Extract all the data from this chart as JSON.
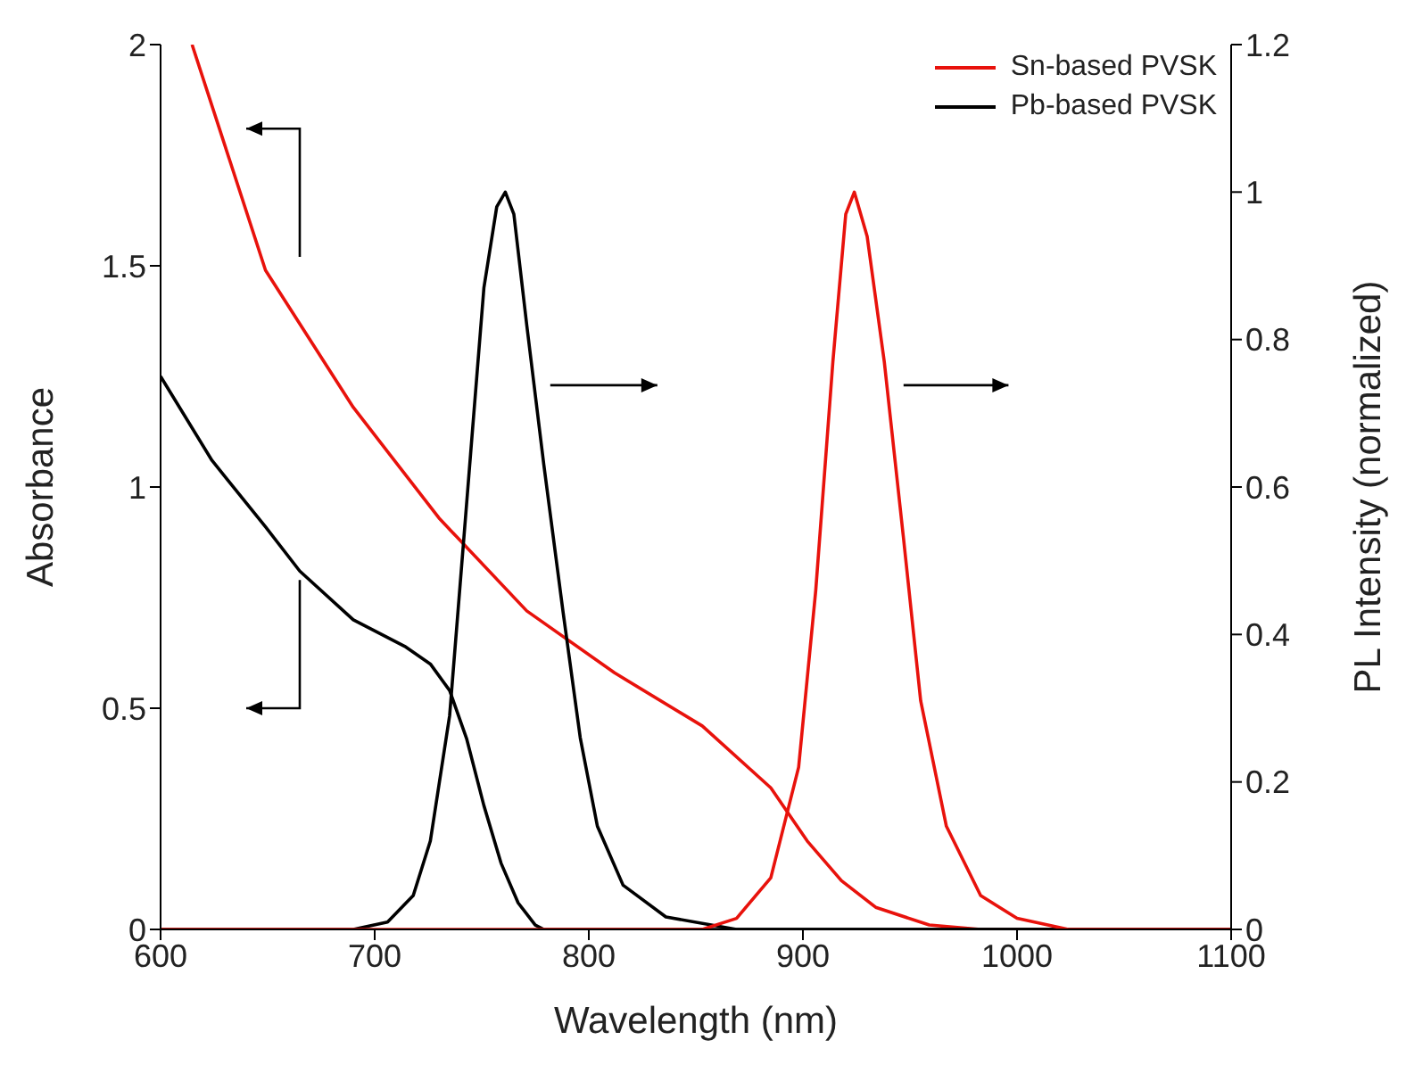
{
  "chart_data": {
    "type": "line",
    "xlabel": "Wavelength (nm)",
    "ylabel": "Absorbance",
    "y2label": "PL Intensity (normalized)",
    "xlim": [
      600,
      1100
    ],
    "xticks": [
      600,
      700,
      800,
      900,
      1000,
      1100
    ],
    "ylim": [
      0,
      2
    ],
    "yticks": [
      0,
      0.5,
      1,
      1.5,
      2
    ],
    "y2lim": [
      0,
      1.2
    ],
    "y2ticks": [
      0,
      0.2,
      0.4,
      0.6,
      0.8,
      1,
      1.2
    ],
    "legend": "top right",
    "series": [
      {
        "name": "Sn-based PVSK",
        "color": "#e8120c",
        "x": [
          614.7,
          649,
          690,
          730,
          771,
          812,
          853,
          885,
          902,
          918,
          934,
          959,
          983,
          1100
        ],
        "values": [
          2.0,
          1.49,
          1.18,
          0.93,
          0.72,
          0.58,
          0.46,
          0.32,
          0.2,
          0.11,
          0.05,
          0.01,
          0,
          0
        ]
      },
      {
        "name": "Pb-based PVSK",
        "color": "#000000",
        "x": [
          600,
          624,
          649,
          665,
          690,
          714,
          726,
          735,
          743,
          751,
          759,
          767,
          775,
          779,
          1100
        ],
        "values": [
          1.25,
          1.06,
          0.91,
          0.81,
          0.7,
          0.64,
          0.6,
          0.54,
          0.43,
          0.28,
          0.15,
          0.06,
          0.01,
          0,
          0
        ]
      },
      {
        "color": "#000000",
        "axis": "y2",
        "x": [
          600,
          690,
          706,
          718,
          726,
          735,
          743,
          751,
          757,
          761,
          765,
          771,
          779,
          788,
          796,
          804,
          816,
          836,
          869,
          1100
        ],
        "values": [
          0,
          0,
          0.01,
          0.046,
          0.12,
          0.29,
          0.58,
          0.87,
          0.98,
          1.0,
          0.97,
          0.82,
          0.63,
          0.43,
          0.26,
          0.14,
          0.06,
          0.017,
          0,
          0
        ]
      },
      {
        "color": "#e8120c",
        "axis": "y2",
        "x": [
          600,
          853,
          869,
          885,
          898,
          906,
          914,
          920,
          924,
          930,
          938,
          947,
          955,
          967,
          983,
          1000,
          1024,
          1100
        ],
        "values": [
          0,
          0,
          0.015,
          0.07,
          0.22,
          0.46,
          0.77,
          0.97,
          1.0,
          0.94,
          0.77,
          0.53,
          0.31,
          0.14,
          0.046,
          0.015,
          0,
          0
        ]
      }
    ]
  }
}
